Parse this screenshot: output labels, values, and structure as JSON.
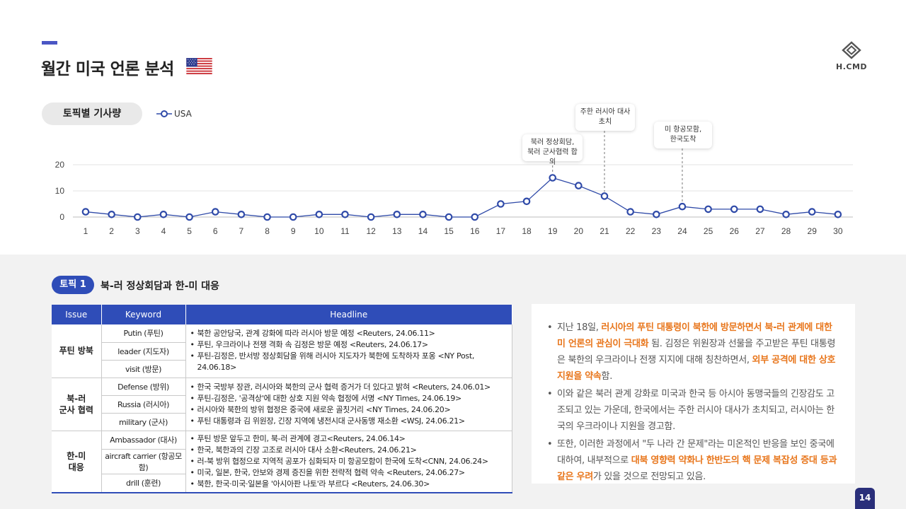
{
  "header": {
    "title": "월간 미국 언론 분석",
    "logo_text": "H.CMD"
  },
  "chart_section": {
    "pill_label": "토픽별 기사량",
    "legend_label": "USA"
  },
  "callouts": [
    {
      "text": "북러 정상회담,\n북러 군사협력 합의",
      "day": 19
    },
    {
      "text": "주한 러시아 대사\n초치",
      "day": 21
    },
    {
      "text": "미 항공모함,\n한국도착",
      "day": 24
    }
  ],
  "chart_data": {
    "type": "line",
    "categories": [
      "1",
      "2",
      "3",
      "4",
      "5",
      "6",
      "7",
      "8",
      "9",
      "10",
      "11",
      "12",
      "13",
      "14",
      "15",
      "16",
      "17",
      "18",
      "19",
      "20",
      "21",
      "22",
      "23",
      "24",
      "25",
      "26",
      "27",
      "28",
      "29",
      "30"
    ],
    "series": [
      {
        "name": "USA",
        "values": [
          2,
          1,
          0,
          1,
          0,
          2,
          1,
          0,
          0,
          1,
          1,
          0,
          1,
          1,
          0,
          0,
          5,
          6,
          15,
          12,
          8,
          2,
          1,
          4,
          3,
          3,
          3,
          1,
          2,
          1
        ]
      }
    ],
    "yticks": [
      0,
      10,
      20
    ],
    "ylim": [
      0,
      20
    ],
    "grid": true,
    "colors": {
      "line": "#2f4aa8",
      "marker_fill": "#ffffff"
    }
  },
  "topic": {
    "badge": "토픽 1",
    "title": "북-러 정상회담과 한-미 대응"
  },
  "table": {
    "headers": {
      "issue": "Issue",
      "keyword": "Keyword",
      "headline": "Headline"
    },
    "groups": [
      {
        "issue": "푸틴 방북",
        "keywords": [
          "Putin (푸틴)",
          "leader (지도자)",
          "visit (방문)"
        ],
        "headlines": [
          "북한 공안당국, 관계 강화에 따라 러시아 방문 예정 <Reuters, 24.06.11>",
          "푸틴, 우크라이나 전쟁 격화 속 김정은 방문 예정 <Reuters, 24.06.17>",
          "푸틴-김정은, 반서방 정상회담을 위해 러시아 지도자가 북한에 도착하자 포옹 <NY Post, 24.06.18>"
        ]
      },
      {
        "issue": "북-러\n군사 협력",
        "keywords": [
          "Defense (방위)",
          "Russia (러시아)",
          "military (군사)"
        ],
        "headlines": [
          "한국 국방부 장관, 러시아와 북한의 군사 협력 증거가 더 있다고 밝혀 <Reuters, 24.06.01>",
          "푸틴-김정은, '공격상'에 대한 상호 지원 약속 협정에 서명 <NY Times, 24.06.19>",
          "러시아와 북한의 방위 협정은 중국에 새로운 골칫거리 <NY Times, 24.06.20>",
          "푸틴 대통령과 김 위원장, 긴장 지역에 냉전시대 군사동맹 재소환 <WSJ, 24.06.21>"
        ]
      },
      {
        "issue": "한-미\n대응",
        "keywords": [
          "Ambassador (대사)",
          "aircraft carrier (항공모함)",
          "drill (훈련)"
        ],
        "headlines": [
          "푸틴 방문 앞두고 한미, 북-러 관계에 경고<Reuters, 24.06.14>",
          "한국, 북한과의 긴장 고조로 러시아 대사 소환<Reuters, 24.06.21>",
          "러-북 방위 협정으로 지역적 공포가 심화되자 미 항공모함이 한국에 도착<CNN, 24.06.24>",
          "미국, 일본, 한국, 안보와 경제 증진을 위한 전략적 협력 약속 <Reuters, 24.06.27>",
          "북한, 한국·미국·일본을 '아시아판 나토'라 부르다 <Reuters, 24.06.30>"
        ]
      }
    ]
  },
  "summary": [
    {
      "parts": [
        {
          "t": "지난 18일, ",
          "hi": false
        },
        {
          "t": "러시아의 푸틴 대통령이 북한에 방문하면서 북-러 관계에 대한 미 언론의 관심이 극대화",
          "hi": true
        },
        {
          "t": " 됨. 김정은 위원장과 선물을 주고받은 푸틴 대통령은 북한의 우크라이나 전쟁 지지에 대해 칭찬하면서, ",
          "hi": false
        },
        {
          "t": "외부 공격에 대한 상호 지원을 약속",
          "hi": true
        },
        {
          "t": "함.",
          "hi": false
        }
      ]
    },
    {
      "parts": [
        {
          "t": "이와 같은 북러 관계 강화로 미국과 한국 등 아시아 동맹국들의 긴장감도 고조되고 있는 가운데, 한국에서는 주한 러시아 대사가 초치되고, 러시아는 한국의 우크라이나 지원을 경고함.",
          "hi": false
        }
      ]
    },
    {
      "parts": [
        {
          "t": "또한, 이러한 과정에서 \"두 나라 간 문제\"라는 미온적인 반응을 보인 중국에 대하여, 내부적으로 ",
          "hi": false
        },
        {
          "t": "대북 영향력 약화나 한반도의 핵 문제 복잡성 증대 등과 같은 우려",
          "hi": true
        },
        {
          "t": "가 있을 것으로 전망되고 있음.",
          "hi": false
        }
      ]
    }
  ],
  "page_number": "14"
}
